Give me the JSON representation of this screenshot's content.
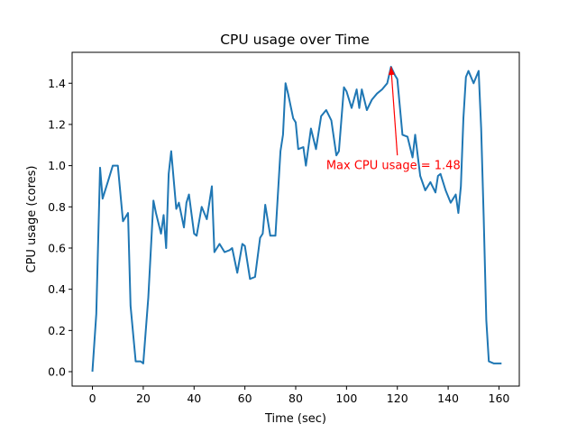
{
  "chart_data": {
    "type": "line",
    "title": "CPU usage over Time",
    "xlabel": "Time (sec)",
    "ylabel": "CPU usage (cores)",
    "xlim": [
      -8,
      168
    ],
    "ylim": [
      -0.07,
      1.55
    ],
    "xticks": [
      0,
      20,
      40,
      60,
      80,
      100,
      120,
      140,
      160
    ],
    "yticks": [
      0.0,
      0.2,
      0.4,
      0.6,
      0.8,
      1.0,
      1.2,
      1.4
    ],
    "ytick_labels": [
      "0.0",
      "0.2",
      "0.4",
      "0.6",
      "0.8",
      "1.0",
      "1.2",
      "1.4"
    ],
    "grid": false,
    "series_color": "#1f77b4",
    "annotation": {
      "text": "Max CPU usage = 1.48",
      "color": "#ff0000",
      "point": [
        117.5,
        1.48
      ],
      "text_anchor_point": [
        92,
        1.0
      ],
      "arrow_tail": [
        120,
        1.05
      ]
    },
    "x": [
      0,
      1.5,
      3,
      4,
      6,
      8,
      10,
      12,
      14,
      15,
      17,
      19,
      20,
      22,
      24,
      25,
      27,
      28,
      29,
      30,
      31,
      33,
      34,
      36,
      37,
      38,
      40,
      41,
      43,
      45,
      47,
      48,
      50,
      52,
      54,
      55,
      57,
      59,
      60,
      62,
      64,
      66,
      67,
      68,
      70,
      72,
      74,
      75,
      76,
      77,
      79,
      80,
      81,
      83,
      84,
      86,
      88,
      90,
      92,
      94,
      96,
      97,
      99,
      100,
      102,
      104,
      105,
      106,
      108,
      110,
      112,
      114,
      116,
      117.5,
      119,
      120,
      122,
      124,
      126,
      127,
      129,
      131,
      133,
      135,
      136,
      137,
      139,
      141,
      143,
      144,
      145,
      146,
      147,
      148,
      150,
      152,
      153,
      154,
      155,
      156,
      158,
      160,
      161
    ],
    "y": [
      0.0,
      0.28,
      0.99,
      0.84,
      0.92,
      1.0,
      1.0,
      0.73,
      0.77,
      0.32,
      0.05,
      0.05,
      0.04,
      0.36,
      0.83,
      0.77,
      0.67,
      0.76,
      0.6,
      0.96,
      1.07,
      0.79,
      0.82,
      0.7,
      0.82,
      0.86,
      0.67,
      0.66,
      0.8,
      0.74,
      0.9,
      0.58,
      0.62,
      0.58,
      0.59,
      0.6,
      0.48,
      0.62,
      0.61,
      0.45,
      0.46,
      0.65,
      0.67,
      0.81,
      0.66,
      0.66,
      1.07,
      1.15,
      1.4,
      1.35,
      1.23,
      1.21,
      1.08,
      1.09,
      1.0,
      1.18,
      1.08,
      1.24,
      1.27,
      1.22,
      1.05,
      1.07,
      1.38,
      1.36,
      1.28,
      1.37,
      1.28,
      1.37,
      1.27,
      1.32,
      1.35,
      1.37,
      1.4,
      1.48,
      1.44,
      1.42,
      1.15,
      1.14,
      1.04,
      1.15,
      0.95,
      0.88,
      0.92,
      0.87,
      0.95,
      0.96,
      0.88,
      0.82,
      0.86,
      0.77,
      0.9,
      1.23,
      1.43,
      1.46,
      1.4,
      1.46,
      1.18,
      0.75,
      0.25,
      0.05,
      0.04,
      0.04,
      0.04
    ]
  }
}
